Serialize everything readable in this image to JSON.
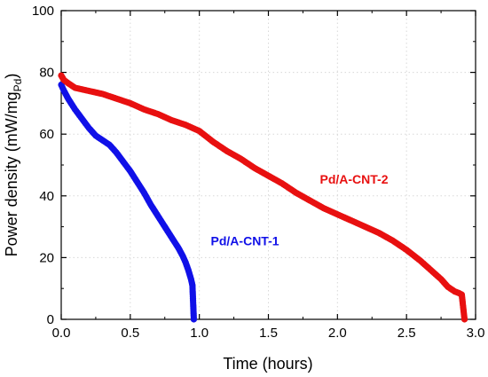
{
  "chart_data": {
    "type": "scatter",
    "xlabel": "Time (hours)",
    "ylabel_main": "Power density (mW/mg",
    "ylabel_sub": "Pd",
    "ylabel_close": ")",
    "xlim": [
      0.0,
      3.0
    ],
    "ylim": [
      0,
      100
    ],
    "xticks": [
      "0.0",
      "0.5",
      "1.0",
      "1.5",
      "2.0",
      "2.5",
      "3.0"
    ],
    "yticks": [
      "0",
      "20",
      "40",
      "60",
      "80",
      "100"
    ],
    "grid": true,
    "series": [
      {
        "name": "Pd/A-CNT-1",
        "color": "#1010e8",
        "x": [
          0.0,
          0.02,
          0.05,
          0.1,
          0.15,
          0.2,
          0.25,
          0.3,
          0.35,
          0.4,
          0.45,
          0.5,
          0.55,
          0.6,
          0.65,
          0.7,
          0.75,
          0.8,
          0.85,
          0.88,
          0.9,
          0.92,
          0.93,
          0.94,
          0.95,
          0.96
        ],
        "y": [
          76.0,
          74.0,
          71.5,
          68.0,
          65.0,
          62.0,
          59.5,
          58.0,
          56.5,
          54.0,
          51.0,
          48.0,
          44.5,
          41.0,
          37.0,
          33.5,
          30.0,
          26.5,
          23.0,
          20.5,
          18.5,
          16.0,
          14.5,
          13.0,
          11.0,
          0.0
        ]
      },
      {
        "name": "Pd/A-CNT-2",
        "color": "#e81010",
        "x": [
          0.0,
          0.02,
          0.05,
          0.1,
          0.2,
          0.3,
          0.4,
          0.5,
          0.6,
          0.7,
          0.8,
          0.9,
          0.95,
          1.0,
          1.1,
          1.2,
          1.3,
          1.4,
          1.5,
          1.6,
          1.7,
          1.8,
          1.9,
          2.0,
          2.1,
          2.2,
          2.3,
          2.4,
          2.5,
          2.6,
          2.7,
          2.75,
          2.8,
          2.85,
          2.88,
          2.9,
          2.91,
          2.92
        ],
        "y": [
          79.0,
          77.5,
          76.5,
          75.0,
          74.0,
          73.0,
          71.5,
          70.0,
          68.0,
          66.5,
          64.5,
          63.0,
          62.0,
          61.0,
          57.5,
          54.5,
          52.0,
          49.0,
          46.5,
          44.0,
          41.0,
          38.5,
          36.0,
          34.0,
          32.0,
          30.0,
          28.0,
          25.5,
          22.5,
          19.0,
          15.0,
          13.0,
          10.5,
          9.0,
          8.5,
          8.0,
          4.0,
          0.0
        ]
      }
    ],
    "annotations": [
      {
        "text": "Pd/A-CNT-1",
        "color": "#1010e8",
        "x": 1.33,
        "y": 24
      },
      {
        "text": "Pd/A-CNT-2",
        "color": "#e81010",
        "x": 2.12,
        "y": 44
      }
    ]
  }
}
